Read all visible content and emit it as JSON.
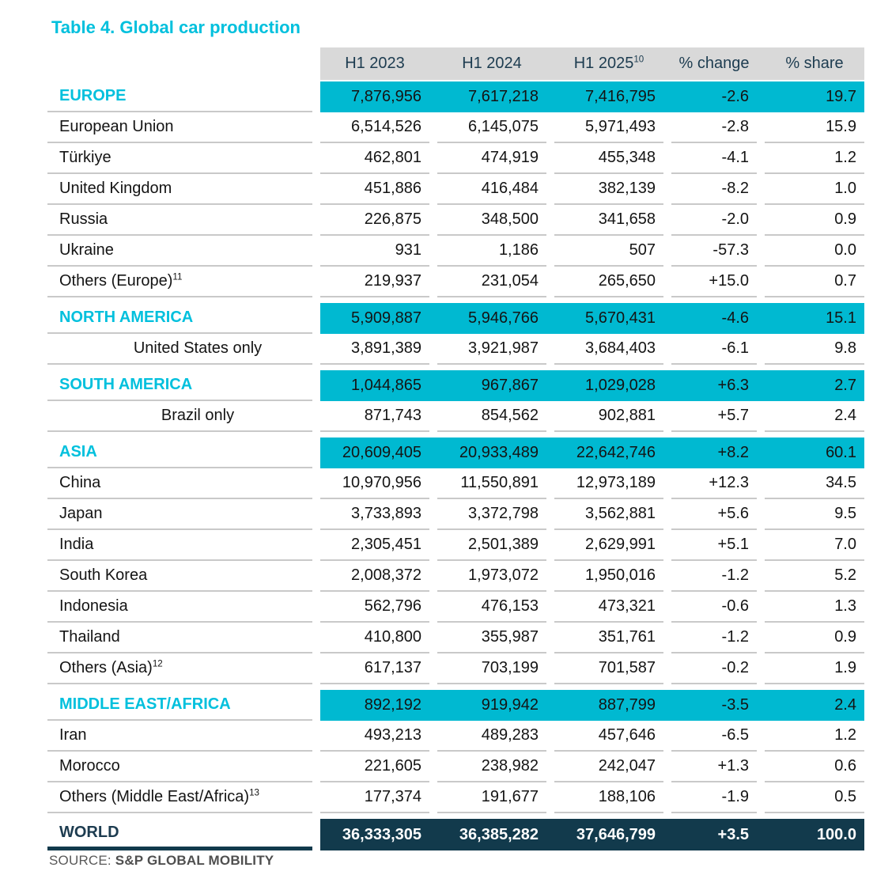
{
  "title": "Table 4. Global car production",
  "colors": {
    "accent_cyan_band": "#00b9d1",
    "accent_cyan_text": "#00c0dd",
    "dark_navy": "#123a4c",
    "header_gray": "#d9d9d9",
    "row_border_gray": "#c9c9c9",
    "body_text": "#141414",
    "source_gray": "#595959"
  },
  "table": {
    "columns": [
      {
        "label": "H1 2023"
      },
      {
        "label": "H1 2024"
      },
      {
        "label": "H1 2025",
        "sup": "10"
      },
      {
        "label": "% change"
      },
      {
        "label": "% share"
      }
    ],
    "rows": [
      {
        "type": "region",
        "label": "EUROPE",
        "values": [
          "7,876,956",
          "7,617,218",
          "7,416,795",
          "-2.6",
          "19.7"
        ]
      },
      {
        "type": "country",
        "label": "European Union",
        "values": [
          "6,514,526",
          "6,145,075",
          "5,971,493",
          "-2.8",
          "15.9"
        ]
      },
      {
        "type": "country",
        "label": "Türkiye",
        "values": [
          "462,801",
          "474,919",
          "455,348",
          "-4.1",
          "1.2"
        ]
      },
      {
        "type": "country",
        "label": "United Kingdom",
        "values": [
          "451,886",
          "416,484",
          "382,139",
          "-8.2",
          "1.0"
        ]
      },
      {
        "type": "country",
        "label": "Russia",
        "values": [
          "226,875",
          "348,500",
          "341,658",
          "-2.0",
          "0.9"
        ]
      },
      {
        "type": "country",
        "label": "Ukraine",
        "values": [
          "931",
          "1,186",
          "507",
          "-57.3",
          "0.0"
        ]
      },
      {
        "type": "country",
        "label": "Others (Europe)",
        "sup": "11",
        "values": [
          "219,937",
          "231,054",
          "265,650",
          "+15.0",
          "0.7"
        ]
      },
      {
        "type": "region",
        "label": "NORTH AMERICA",
        "values": [
          "5,909,887",
          "5,946,766",
          "5,670,431",
          "-4.6",
          "15.1"
        ]
      },
      {
        "type": "indent",
        "label": "United States only",
        "values": [
          "3,891,389",
          "3,921,987",
          "3,684,403",
          "-6.1",
          "9.8"
        ]
      },
      {
        "type": "region",
        "label": "SOUTH AMERICA",
        "values": [
          "1,044,865",
          "967,867",
          "1,029,028",
          "+6.3",
          "2.7"
        ]
      },
      {
        "type": "indent",
        "label": "Brazil only",
        "values": [
          "871,743",
          "854,562",
          "902,881",
          "+5.7",
          "2.4"
        ]
      },
      {
        "type": "region",
        "label": "ASIA",
        "values": [
          "20,609,405",
          "20,933,489",
          "22,642,746",
          "+8.2",
          "60.1"
        ]
      },
      {
        "type": "country",
        "label": "China",
        "values": [
          "10,970,956",
          "11,550,891",
          "12,973,189",
          "+12.3",
          "34.5"
        ]
      },
      {
        "type": "country",
        "label": "Japan",
        "values": [
          "3,733,893",
          "3,372,798",
          "3,562,881",
          "+5.6",
          "9.5"
        ]
      },
      {
        "type": "country",
        "label": "India",
        "values": [
          "2,305,451",
          "2,501,389",
          "2,629,991",
          "+5.1",
          "7.0"
        ]
      },
      {
        "type": "country",
        "label": "South Korea",
        "values": [
          "2,008,372",
          "1,973,072",
          "1,950,016",
          "-1.2",
          "5.2"
        ]
      },
      {
        "type": "country",
        "label": "Indonesia",
        "values": [
          "562,796",
          "476,153",
          "473,321",
          "-0.6",
          "1.3"
        ]
      },
      {
        "type": "country",
        "label": "Thailand",
        "values": [
          "410,800",
          "355,987",
          "351,761",
          "-1.2",
          "0.9"
        ]
      },
      {
        "type": "country",
        "label": "Others (Asia)",
        "sup": "12",
        "values": [
          "617,137",
          "703,199",
          "701,587",
          "-0.2",
          "1.9"
        ]
      },
      {
        "type": "region",
        "label": "MIDDLE EAST/AFRICA",
        "values": [
          "892,192",
          "919,942",
          "887,799",
          "-3.5",
          "2.4"
        ]
      },
      {
        "type": "country",
        "label": "Iran",
        "values": [
          "493,213",
          "489,283",
          "457,646",
          "-6.5",
          "1.2"
        ]
      },
      {
        "type": "country",
        "label": "Morocco",
        "values": [
          "221,605",
          "238,982",
          "242,047",
          "+1.3",
          "0.6"
        ]
      },
      {
        "type": "country",
        "label": "Others (Middle East/Africa)",
        "sup": "13",
        "values": [
          "177,374",
          "191,677",
          "188,106",
          "-1.9",
          "0.5"
        ]
      },
      {
        "type": "world",
        "label": "WORLD",
        "values": [
          "36,333,305",
          "36,385,282",
          "37,646,799",
          "+3.5",
          "100.0"
        ]
      }
    ]
  },
  "source": {
    "prefix": "SOURCE: ",
    "name": "S&P GLOBAL MOBILITY"
  }
}
